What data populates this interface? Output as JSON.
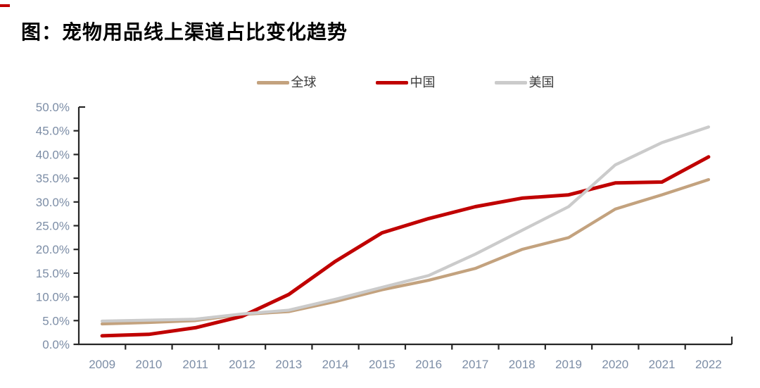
{
  "page": {
    "title": "图：宠物用品线上渠道占比变化趋势",
    "accent_red": "#C00000"
  },
  "chart_data": {
    "type": "line",
    "title": "图：宠物用品线上渠道占比变化趋势",
    "categories": [
      "2009",
      "2010",
      "2011",
      "2012",
      "2013",
      "2014",
      "2015",
      "2016",
      "2017",
      "2018",
      "2019",
      "2020",
      "2021",
      "2022"
    ],
    "series": [
      {
        "name": "全球",
        "color": "#C3A27E",
        "values": [
          4.3,
          4.6,
          5.0,
          6.3,
          6.9,
          9.0,
          11.5,
          13.5,
          16.0,
          20.0,
          22.5,
          28.5,
          31.5,
          34.7
        ]
      },
      {
        "name": "中国",
        "color": "#C00000",
        "values": [
          1.8,
          2.1,
          3.5,
          5.9,
          10.5,
          17.5,
          23.5,
          26.5,
          29.0,
          30.8,
          31.5,
          34.0,
          34.2,
          39.5
        ]
      },
      {
        "name": "美国",
        "color": "#CBCBCB",
        "values": [
          4.9,
          5.1,
          5.3,
          6.4,
          7.2,
          9.5,
          12.0,
          14.5,
          19.0,
          24.0,
          29.0,
          37.8,
          42.5,
          45.8
        ]
      }
    ],
    "xlabel": "",
    "ylabel": "",
    "ylim": [
      0,
      50
    ],
    "ytick_step": 5,
    "ytick_labels": [
      "0.0%",
      "5.0%",
      "10.0%",
      "15.0%",
      "20.0%",
      "25.0%",
      "30.0%",
      "35.0%",
      "40.0%",
      "45.0%",
      "50.0%"
    ],
    "grid": false,
    "legend_position": "top-center",
    "axis_color": "#262626",
    "tick_label_color": "#7C8DA6"
  }
}
